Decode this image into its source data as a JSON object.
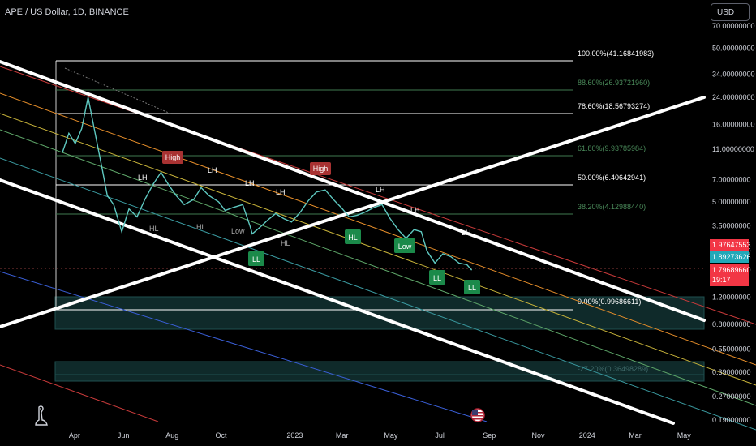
{
  "title": "APE / US Dollar, 1D, BINANCE",
  "currency_button": "USD",
  "colors": {
    "background": "#000000",
    "price_line": "#5ec8c0",
    "channel": "#ffffff",
    "high_label": "#a83232",
    "low_label": "#1b8a4a",
    "fib_line": "#4a7c59",
    "price_badge_red": "#f23645",
    "price_badge_teal": "#22a8b8"
  },
  "chart_data": {
    "type": "line",
    "symbol": "APE / US Dollar",
    "interval": "1D",
    "exchange": "BINANCE",
    "y_scale": "log",
    "ylim": [
      0.19,
      70
    ],
    "x_axis_ticks": [
      "Apr",
      "Jun",
      "Aug",
      "Oct",
      "2023",
      "Mar",
      "May",
      "Jul",
      "Sep",
      "Nov",
      "2024",
      "Mar",
      "May"
    ],
    "y_axis_ticks": [
      "70.00000000",
      "50.00000000",
      "34.00000000",
      "24.00000000",
      "16.00000000",
      "11.00000000",
      "7.00000000",
      "5.00000000",
      "3.50000000",
      "2.40000000",
      "1.20000000",
      "0.80000000",
      "0.55000000",
      "0.39000000",
      "0.27000000",
      "0.19000000"
    ],
    "fib_levels": [
      {
        "label": "100.00%(41.16841983)",
        "value": 41.16841983
      },
      {
        "label": "88.60%(26.93721960)",
        "value": 26.9372196
      },
      {
        "label": "78.60%(18.56793274)",
        "value": 18.56793274
      },
      {
        "label": "61.80%(9.93785984)",
        "value": 9.93785984
      },
      {
        "label": "50.00%(6.40642941)",
        "value": 6.40642941
      },
      {
        "label": "38.20%(4.12988440)",
        "value": 4.1298844
      },
      {
        "label": "0.00%(0.99686611)",
        "value": 0.99686611
      },
      {
        "label": "-27.20%(0.36498289)",
        "value": 0.36498289
      }
    ],
    "price_badges": [
      "1.97647553",
      "1.89273626",
      "1.79689660",
      "19:17"
    ],
    "annotations": {
      "high": [
        "High",
        "High"
      ],
      "lh": [
        "LH",
        "LH",
        "LH",
        "LH",
        "LH",
        "LH",
        "LH"
      ],
      "hl_dark": [
        "HL",
        "HL",
        "HL",
        "Low"
      ],
      "boxed_green": [
        "LL",
        "HL",
        "Low",
        "LL",
        "LL"
      ]
    },
    "series": [
      {
        "x": [
          "2022-03-17",
          "2022-03-25",
          "2022-04-02",
          "2022-04-10",
          "2022-04-18",
          "2022-04-28",
          "2022-05-06",
          "2022-05-12",
          "2022-05-20",
          "2022-05-30",
          "2022-06-08",
          "2022-06-18",
          "2022-06-28",
          "2022-07-08",
          "2022-07-18",
          "2022-07-28",
          "2022-08-06",
          "2022-08-16",
          "2022-08-28",
          "2022-09-06",
          "2022-09-16",
          "2022-09-28",
          "2022-10-06",
          "2022-10-16",
          "2022-10-28",
          "2022-11-06",
          "2022-11-09",
          "2022-11-18",
          "2022-11-28",
          "2022-12-08",
          "2022-12-18",
          "2022-12-28",
          "2023-01-08",
          "2023-01-18",
          "2023-01-28",
          "2023-02-08",
          "2023-02-18",
          "2023-02-28",
          "2023-03-10",
          "2023-03-20",
          "2023-03-30",
          "2023-04-10",
          "2023-04-20",
          "2023-04-30",
          "2023-05-10",
          "2023-05-20",
          "2023-05-30",
          "2023-06-08",
          "2023-06-15",
          "2023-06-25",
          "2023-07-05",
          "2023-07-15",
          "2023-07-25",
          "2023-08-04",
          "2023-08-10"
        ],
        "values": [
          10.5,
          14.0,
          12.0,
          15.0,
          24.0,
          13.0,
          8.0,
          5.5,
          4.8,
          3.2,
          4.5,
          4.0,
          5.2,
          6.5,
          7.8,
          6.4,
          5.5,
          4.8,
          5.2,
          6.2,
          5.5,
          5.0,
          4.4,
          4.6,
          4.8,
          3.5,
          3.1,
          3.4,
          3.8,
          4.2,
          3.9,
          3.7,
          4.3,
          5.1,
          5.8,
          6.0,
          5.2,
          4.6,
          4.0,
          4.1,
          4.3,
          4.6,
          4.8,
          3.9,
          3.3,
          2.9,
          3.3,
          3.2,
          2.4,
          2.0,
          2.3,
          2.2,
          2.0,
          1.95,
          1.8
        ]
      }
    ]
  }
}
